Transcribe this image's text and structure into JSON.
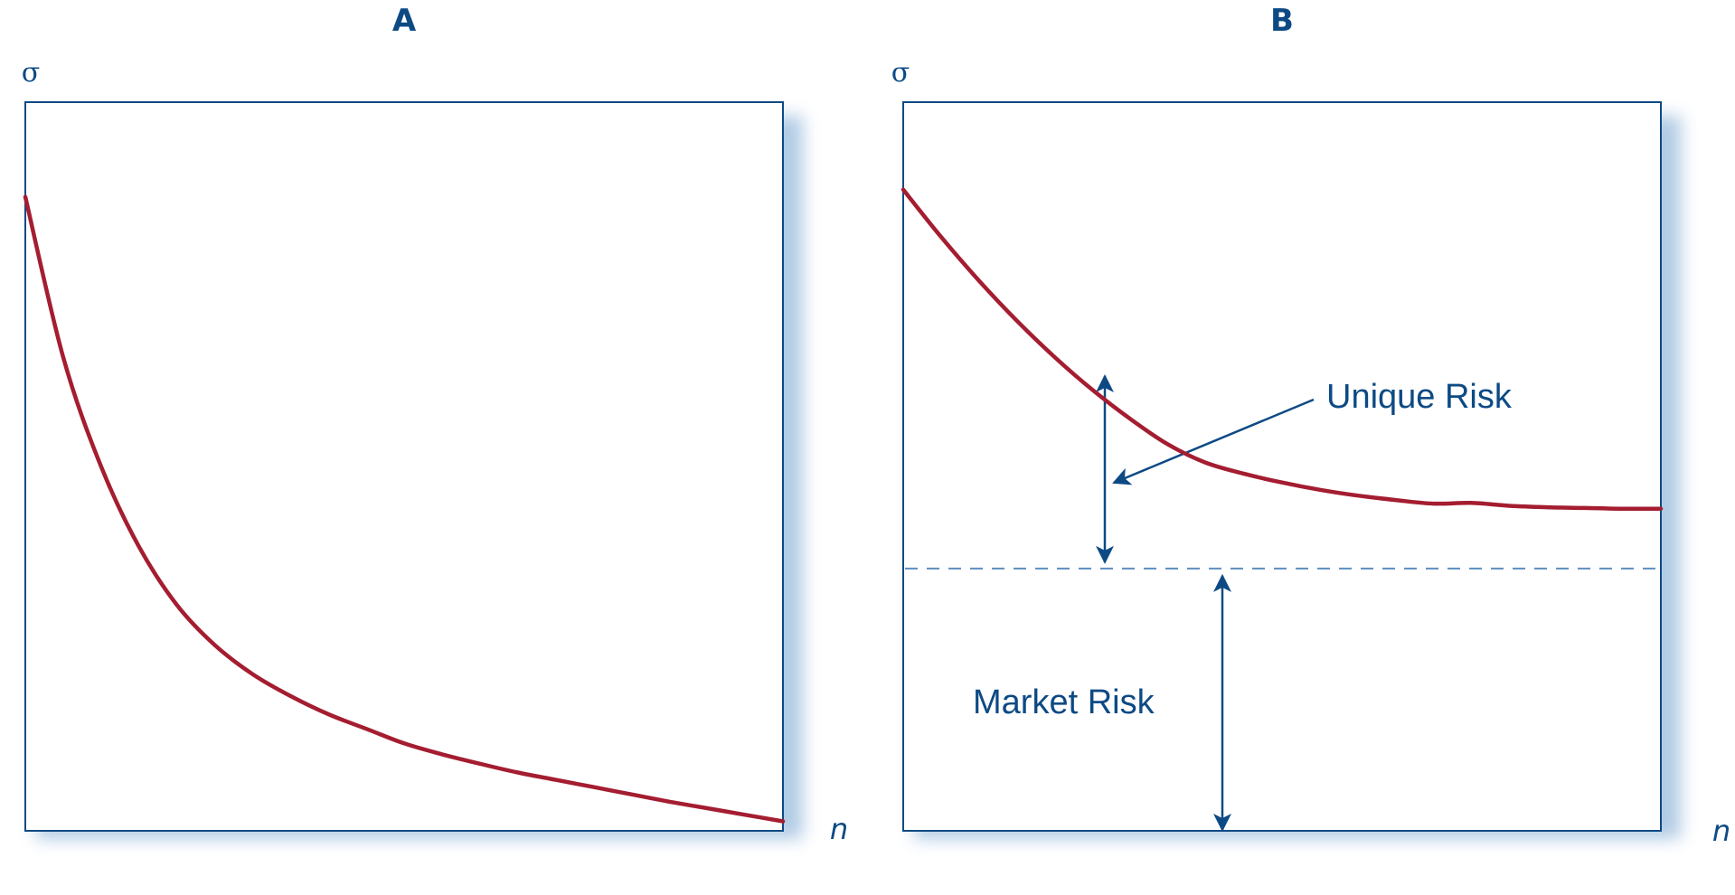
{
  "colors": {
    "axis": "#0d4a84",
    "curve": "#a41d30",
    "shadow": "#a9c6e2",
    "dashed": "#5d8fbf"
  },
  "chart_data": [
    {
      "type": "line",
      "title": "A",
      "xlabel": "n",
      "ylabel": "σ",
      "xlim": [
        0,
        1
      ],
      "ylim": [
        0,
        1
      ],
      "series": [
        {
          "x": [
            0,
            0.05,
            0.1,
            0.15,
            0.2,
            0.25,
            0.3,
            0.35,
            0.4,
            0.45,
            0.5,
            0.55,
            0.6,
            0.65,
            0.7,
            0.75,
            0.8,
            0.85,
            0.9,
            0.95,
            1.0
          ],
          "values": [
            0.87,
            0.65,
            0.5,
            0.39,
            0.31,
            0.255,
            0.215,
            0.185,
            0.16,
            0.14,
            0.12,
            0.105,
            0.092,
            0.08,
            0.07,
            0.06,
            0.05,
            0.04,
            0.031,
            0.022,
            0.013
          ]
        }
      ],
      "grid": false
    },
    {
      "type": "line",
      "title": "B",
      "xlabel": "n",
      "ylabel": "σ",
      "xlim": [
        0,
        1
      ],
      "ylim": [
        0,
        1
      ],
      "series": [
        {
          "x": [
            0,
            0.05,
            0.1,
            0.15,
            0.2,
            0.25,
            0.3,
            0.35,
            0.4,
            0.45,
            0.5,
            0.55,
            0.6,
            0.65,
            0.7,
            0.75,
            0.8,
            0.85,
            0.9,
            0.95,
            1.0
          ],
          "values": [
            0.88,
            0.815,
            0.755,
            0.7,
            0.65,
            0.605,
            0.565,
            0.53,
            0.505,
            0.49,
            0.478,
            0.468,
            0.46,
            0.454,
            0.449,
            0.45,
            0.446,
            0.444,
            0.443,
            0.442,
            0.442
          ]
        }
      ],
      "market_risk_level": 0.36,
      "annotations": [
        {
          "text": "Unique Risk"
        },
        {
          "text": "Market Risk"
        }
      ],
      "grid": false
    }
  ]
}
